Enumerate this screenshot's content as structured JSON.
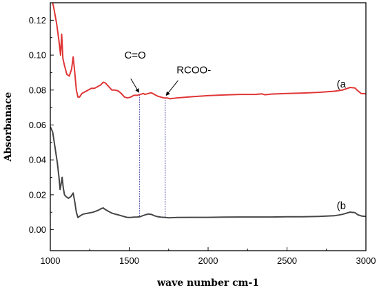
{
  "chart_data": {
    "type": "line",
    "title": "",
    "xlabel": "wave number cm-1",
    "ylabel": "Absorbanace",
    "xlim": [
      1000,
      3000
    ],
    "ylim": [
      -0.012,
      0.13
    ],
    "x_ticks": [
      1000,
      1500,
      2000,
      2500,
      3000
    ],
    "y_ticks": [
      0.0,
      0.02,
      0.04,
      0.06,
      0.08,
      0.1,
      0.12
    ],
    "y_tick_labels": [
      "0.00",
      "0.02",
      "0.04",
      "0.06",
      "0.08",
      "0.10",
      "0.12"
    ],
    "grid": false,
    "series": [
      {
        "name": "(a",
        "color": "#e03535",
        "points": [
          [
            1000,
            0.135
          ],
          [
            1020,
            0.128
          ],
          [
            1040,
            0.118
          ],
          [
            1055,
            0.108
          ],
          [
            1065,
            0.1
          ],
          [
            1072,
            0.112
          ],
          [
            1080,
            0.098
          ],
          [
            1090,
            0.094
          ],
          [
            1105,
            0.089
          ],
          [
            1120,
            0.088
          ],
          [
            1135,
            0.092
          ],
          [
            1145,
            0.099
          ],
          [
            1155,
            0.09
          ],
          [
            1165,
            0.08
          ],
          [
            1175,
            0.076
          ],
          [
            1185,
            0.076
          ],
          [
            1200,
            0.078
          ],
          [
            1220,
            0.079
          ],
          [
            1240,
            0.08
          ],
          [
            1260,
            0.081
          ],
          [
            1280,
            0.081
          ],
          [
            1300,
            0.082
          ],
          [
            1320,
            0.083
          ],
          [
            1335,
            0.0845
          ],
          [
            1350,
            0.084
          ],
          [
            1370,
            0.082
          ],
          [
            1390,
            0.08
          ],
          [
            1410,
            0.08
          ],
          [
            1430,
            0.0795
          ],
          [
            1450,
            0.078
          ],
          [
            1470,
            0.076
          ],
          [
            1490,
            0.0755
          ],
          [
            1510,
            0.076
          ],
          [
            1530,
            0.077
          ],
          [
            1550,
            0.077
          ],
          [
            1570,
            0.0775
          ],
          [
            1590,
            0.078
          ],
          [
            1600,
            0.0775
          ],
          [
            1620,
            0.078
          ],
          [
            1640,
            0.0785
          ],
          [
            1660,
            0.0775
          ],
          [
            1680,
            0.0765
          ],
          [
            1700,
            0.076
          ],
          [
            1720,
            0.0755
          ],
          [
            1740,
            0.0755
          ],
          [
            1760,
            0.075
          ],
          [
            1800,
            0.0755
          ],
          [
            1900,
            0.0762
          ],
          [
            2000,
            0.0768
          ],
          [
            2100,
            0.0772
          ],
          [
            2200,
            0.0775
          ],
          [
            2300,
            0.0775
          ],
          [
            2340,
            0.0778
          ],
          [
            2360,
            0.0773
          ],
          [
            2400,
            0.0777
          ],
          [
            2500,
            0.078
          ],
          [
            2600,
            0.0783
          ],
          [
            2700,
            0.0787
          ],
          [
            2800,
            0.0793
          ],
          [
            2850,
            0.08
          ],
          [
            2900,
            0.0815
          ],
          [
            2930,
            0.0812
          ],
          [
            2950,
            0.0795
          ],
          [
            2970,
            0.078
          ],
          [
            3000,
            0.0778
          ]
        ]
      },
      {
        "name": "(b",
        "color": "#454545",
        "points": [
          [
            1000,
            0.059
          ],
          [
            1015,
            0.056
          ],
          [
            1030,
            0.047
          ],
          [
            1045,
            0.038
          ],
          [
            1055,
            0.03
          ],
          [
            1062,
            0.023
          ],
          [
            1068,
            0.026
          ],
          [
            1075,
            0.03
          ],
          [
            1082,
            0.024
          ],
          [
            1090,
            0.02
          ],
          [
            1100,
            0.019
          ],
          [
            1115,
            0.018
          ],
          [
            1130,
            0.019
          ],
          [
            1145,
            0.021
          ],
          [
            1155,
            0.016
          ],
          [
            1165,
            0.01
          ],
          [
            1175,
            0.007
          ],
          [
            1190,
            0.008
          ],
          [
            1210,
            0.009
          ],
          [
            1240,
            0.0095
          ],
          [
            1270,
            0.01
          ],
          [
            1300,
            0.011
          ],
          [
            1320,
            0.012
          ],
          [
            1335,
            0.0125
          ],
          [
            1350,
            0.0115
          ],
          [
            1370,
            0.0105
          ],
          [
            1390,
            0.0095
          ],
          [
            1410,
            0.009
          ],
          [
            1430,
            0.0085
          ],
          [
            1450,
            0.008
          ],
          [
            1470,
            0.0075
          ],
          [
            1490,
            0.007
          ],
          [
            1510,
            0.007
          ],
          [
            1530,
            0.0072
          ],
          [
            1550,
            0.0073
          ],
          [
            1570,
            0.0075
          ],
          [
            1600,
            0.0085
          ],
          [
            1620,
            0.009
          ],
          [
            1640,
            0.0088
          ],
          [
            1660,
            0.008
          ],
          [
            1680,
            0.0075
          ],
          [
            1700,
            0.0072
          ],
          [
            1750,
            0.0068
          ],
          [
            1800,
            0.007
          ],
          [
            1900,
            0.0071
          ],
          [
            2000,
            0.0071
          ],
          [
            2100,
            0.0072
          ],
          [
            2200,
            0.0073
          ],
          [
            2300,
            0.0073
          ],
          [
            2400,
            0.0073
          ],
          [
            2500,
            0.0074
          ],
          [
            2600,
            0.0074
          ],
          [
            2700,
            0.0076
          ],
          [
            2800,
            0.008
          ],
          [
            2850,
            0.0088
          ],
          [
            2900,
            0.0101
          ],
          [
            2930,
            0.0098
          ],
          [
            2950,
            0.0085
          ],
          [
            2975,
            0.0078
          ],
          [
            3000,
            0.0076
          ]
        ]
      }
    ],
    "annotations": [
      {
        "text": "C=O",
        "x": 1555,
        "label_y": 0.1
      },
      {
        "text": "RCOO-",
        "x": 1725,
        "label_y": 0.0915
      }
    ],
    "guide_lines": [
      {
        "x": 1565,
        "y_top": 0.0775,
        "y_bottom": 0.007,
        "color": "#4a4aa8"
      },
      {
        "x": 1728,
        "y_top": 0.0757,
        "y_bottom": 0.0068,
        "color": "#4a4aa8"
      }
    ]
  }
}
